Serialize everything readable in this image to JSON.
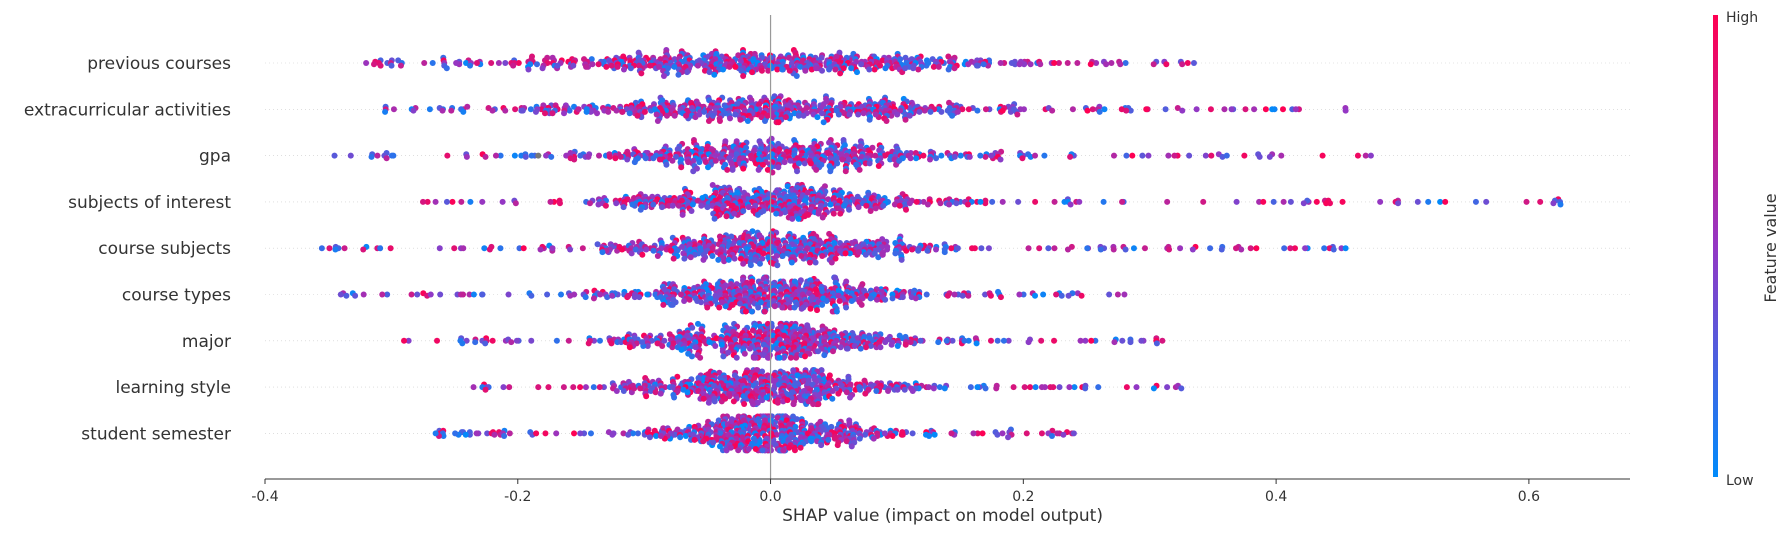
{
  "chart_data": {
    "type": "scatter",
    "subtype": "shap-beeswarm",
    "xlabel": "SHAP value (impact on model output)",
    "xlim": [
      -0.4,
      0.68
    ],
    "x_ticks": [
      "-0.4",
      "-0.2",
      "0.0",
      "0.2",
      "0.4",
      "0.6"
    ],
    "x_tick_values": [
      -0.4,
      -0.2,
      0.0,
      0.2,
      0.4,
      0.6
    ],
    "zero_line": 0.0,
    "features": [
      {
        "name": "previous courses",
        "min": -0.32,
        "max": 0.335,
        "spread": 0.11,
        "skew": 0.3
      },
      {
        "name": "extracurricular activities",
        "min": -0.305,
        "max": 0.455,
        "spread": 0.095,
        "skew": 0.2
      },
      {
        "name": "gpa",
        "min": -0.345,
        "max": 0.475,
        "spread": 0.075,
        "skew": 0.0
      },
      {
        "name": "subjects of interest",
        "min": -0.275,
        "max": 0.625,
        "spread": 0.065,
        "skew": 0.2
      },
      {
        "name": "course subjects",
        "min": -0.355,
        "max": 0.455,
        "spread": 0.065,
        "skew": 0.0
      },
      {
        "name": "course types",
        "min": -0.34,
        "max": 0.28,
        "spread": 0.06,
        "skew": 0.0
      },
      {
        "name": "major",
        "min": -0.29,
        "max": 0.31,
        "spread": 0.055,
        "skew": 0.0
      },
      {
        "name": "learning style",
        "min": -0.235,
        "max": 0.325,
        "spread": 0.05,
        "skew": 0.0
      },
      {
        "name": "student semester",
        "min": -0.265,
        "max": 0.24,
        "spread": 0.045,
        "skew": 0.0
      }
    ],
    "colorbar": {
      "title": "Feature value",
      "high_label": "High",
      "low_label": "Low",
      "high_color": "#ff0052",
      "low_color": "#008bfb",
      "missing_color": "#777777"
    },
    "grid": false,
    "legend": "right"
  }
}
